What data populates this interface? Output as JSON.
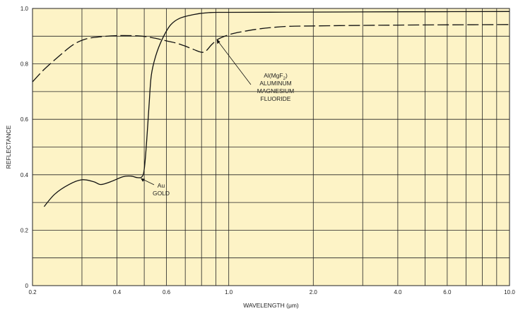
{
  "chart_data": {
    "type": "line",
    "title": "",
    "xlabel": "WAVELENGTH (μm)",
    "ylabel": "REFLECTANCE",
    "x_scale": "log",
    "xlim": [
      0.2,
      10.0
    ],
    "ylim": [
      0,
      1.0
    ],
    "x_ticks": [
      0.2,
      0.4,
      0.6,
      1.0,
      2.0,
      4.0,
      6.0,
      10.0
    ],
    "x_tick_labels": [
      "0.2",
      "0.4",
      "0.6",
      "1.0",
      "2.0",
      "4.0",
      "6.0",
      "10.0"
    ],
    "y_ticks": [
      0,
      0.2,
      0.4,
      0.6,
      0.8,
      1.0
    ],
    "y_tick_labels": [
      "0",
      "0.2",
      "0.4",
      "0.6",
      "0.8",
      "1.0"
    ],
    "grid": true,
    "background_color": "#fdf3c6",
    "grid_color": "#222222",
    "series": [
      {
        "name": "",
        "style": "solid",
        "x": [
          0.22,
          0.24,
          0.27,
          0.3,
          0.33,
          0.35,
          0.38,
          0.42,
          0.45,
          0.47,
          0.49,
          0.5,
          0.51,
          0.52,
          0.53,
          0.55,
          0.58,
          0.62,
          0.67,
          0.75,
          0.85,
          1.0,
          2.0,
          4.0,
          10.0
        ],
        "y": [
          0.285,
          0.33,
          0.365,
          0.382,
          0.375,
          0.365,
          0.375,
          0.393,
          0.395,
          0.39,
          0.392,
          0.42,
          0.52,
          0.65,
          0.76,
          0.83,
          0.89,
          0.94,
          0.965,
          0.978,
          0.985,
          0.986,
          0.987,
          0.988,
          0.989
        ]
      },
      {
        "name": "",
        "style": "dashed",
        "x": [
          0.2,
          0.22,
          0.25,
          0.28,
          0.31,
          0.35,
          0.4,
          0.45,
          0.5,
          0.55,
          0.6,
          0.65,
          0.7,
          0.75,
          0.8,
          0.83,
          0.87,
          0.92,
          1.0,
          1.1,
          1.3,
          1.6,
          2.0,
          3.0,
          4.0,
          6.0,
          10.0
        ],
        "y": [
          0.735,
          0.78,
          0.83,
          0.87,
          0.89,
          0.898,
          0.902,
          0.902,
          0.899,
          0.892,
          0.883,
          0.875,
          0.864,
          0.852,
          0.842,
          0.847,
          0.87,
          0.89,
          0.905,
          0.915,
          0.927,
          0.935,
          0.937,
          0.939,
          0.94,
          0.941,
          0.942
        ]
      }
    ],
    "annotations": [
      {
        "lines": [
          "Au",
          "GOLD"
        ],
        "x": 0.48,
        "y": 0.39
      },
      {
        "lines": [
          "Al(MgF",
          "ALUMINUM",
          "MAGNESIUM",
          "FLUORIDE"
        ],
        "subscript": "2",
        "x": 0.9,
        "y": 0.895
      }
    ]
  }
}
